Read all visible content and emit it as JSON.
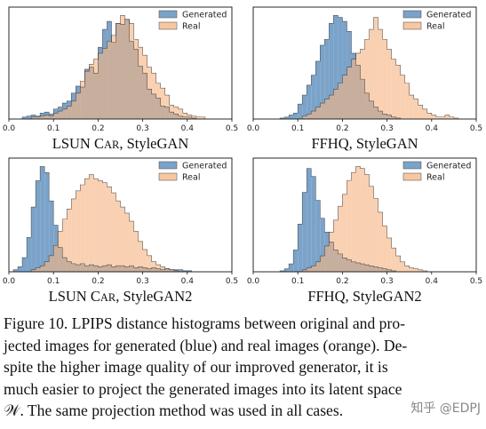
{
  "colors": {
    "generated": "#7ba3c9",
    "real": "#f6b483",
    "overlap": "#9d8d80",
    "edge": "#222222"
  },
  "chart_data": [
    {
      "type": "histogram",
      "title": "LSUN CAR, StyleGAN",
      "title_main": "LSUN C",
      "title_sc": "AR",
      "title_rest": ", StyleGAN",
      "legend": [
        "Generated",
        "Real"
      ],
      "xlim": [
        0,
        0.5
      ],
      "xticks": [
        "0.0",
        "0.1",
        "0.2",
        "0.3",
        "0.4",
        "0.5"
      ],
      "series": [
        {
          "name": "Generated",
          "x0": 0.03,
          "bin_width": 0.01,
          "values": [
            2,
            3,
            4,
            3,
            6,
            7,
            5,
            10,
            12,
            16,
            18,
            26,
            33,
            32,
            50,
            52,
            46,
            72,
            90,
            98,
            77,
            96,
            95,
            100,
            78,
            70,
            53,
            46,
            30,
            25,
            21,
            13,
            12,
            7,
            5,
            3,
            2,
            2,
            1
          ]
        },
        {
          "name": "Real",
          "x0": 0.05,
          "bin_width": 0.01,
          "values": [
            2,
            2,
            3,
            4,
            3,
            6,
            8,
            10,
            13,
            18,
            26,
            38,
            48,
            55,
            60,
            66,
            71,
            78,
            84,
            96,
            104,
            100,
            96,
            80,
            72,
            64,
            52,
            46,
            36,
            31,
            24,
            14,
            12,
            10,
            6,
            4,
            3,
            2,
            2
          ]
        }
      ]
    },
    {
      "type": "histogram",
      "title": "FFHQ, StyleGAN",
      "legend": [
        "Generated",
        "Real"
      ],
      "xlim": [
        0,
        0.5
      ],
      "xticks": [
        "0.0",
        "0.1",
        "0.2",
        "0.3",
        "0.4",
        "0.5"
      ],
      "series": [
        {
          "name": "Generated",
          "x0": 0.06,
          "bin_width": 0.01,
          "values": [
            1,
            2,
            4,
            6,
            15,
            24,
            34,
            44,
            58,
            74,
            80,
            96,
            104,
            102,
            98,
            88,
            66,
            54,
            40,
            26,
            18,
            12,
            8,
            5,
            4,
            2,
            1
          ]
        },
        {
          "name": "Real",
          "x0": 0.11,
          "bin_width": 0.01,
          "values": [
            3,
            5,
            8,
            12,
            16,
            20,
            24,
            30,
            36,
            44,
            52,
            60,
            66,
            70,
            80,
            90,
            102,
            90,
            80,
            70,
            60,
            54,
            44,
            36,
            24,
            20,
            14,
            10,
            6,
            4,
            2,
            2,
            4,
            2,
            1
          ]
        }
      ]
    },
    {
      "type": "histogram",
      "title": "LSUN CAR, StyleGAN2",
      "title_main": "LSUN C",
      "title_sc": "AR",
      "title_rest": ", StyleGAN2",
      "legend": [
        "Generated",
        "Real"
      ],
      "xlim": [
        0,
        0.5
      ],
      "xticks": [
        "0.0",
        "0.1",
        "0.2",
        "0.3",
        "0.4",
        "0.5"
      ],
      "series": [
        {
          "name": "Generated",
          "x0": 0.01,
          "bin_width": 0.01,
          "values": [
            2,
            5,
            14,
            34,
            64,
            90,
            104,
            98,
            70,
            46,
            24,
            14,
            10,
            8,
            7,
            8,
            6,
            7,
            6,
            5,
            6,
            7,
            5,
            6,
            6,
            5,
            6,
            4,
            5,
            4,
            3,
            4,
            3,
            2,
            3,
            2,
            2,
            2,
            1,
            1
          ]
        },
        {
          "name": "Real",
          "x0": 0.05,
          "bin_width": 0.01,
          "values": [
            2,
            4,
            6,
            10,
            16,
            26,
            40,
            52,
            62,
            72,
            80,
            86,
            92,
            96,
            92,
            90,
            88,
            84,
            78,
            70,
            64,
            58,
            50,
            40,
            30,
            22,
            16,
            10,
            7,
            5,
            3,
            2,
            1
          ]
        }
      ]
    },
    {
      "type": "histogram",
      "title": "FFHQ, StyleGAN2",
      "legend": [
        "Generated",
        "Real"
      ],
      "xlim": [
        0,
        0.5
      ],
      "xticks": [
        "0.0",
        "0.1",
        "0.2",
        "0.3",
        "0.4",
        "0.5"
      ],
      "series": [
        {
          "name": "Generated",
          "x0": 0.06,
          "bin_width": 0.01,
          "values": [
            1,
            3,
            8,
            22,
            48,
            80,
            104,
            96,
            72,
            54,
            40,
            30,
            22,
            18,
            14,
            12,
            10,
            9,
            8,
            7,
            6,
            5,
            4,
            3,
            2,
            1
          ]
        },
        {
          "name": "Real",
          "x0": 0.11,
          "bin_width": 0.01,
          "values": [
            2,
            4,
            6,
            10,
            16,
            26,
            40,
            52,
            66,
            78,
            92,
            100,
            106,
            104,
            98,
            86,
            74,
            60,
            46,
            34,
            24,
            16,
            10,
            6,
            4,
            3,
            2,
            1
          ]
        }
      ]
    }
  ],
  "caption": {
    "lines": [
      "Figure 10. LPIPS distance histograms between original and pro-",
      "jected images for generated (blue) and real images (orange). De-",
      "spite the higher image quality of our improved generator, it is",
      "much easier to project the generated images into its latent space",
      "𝒲. The same projection method was used in all cases."
    ]
  },
  "watermark": "知乎 @EDPJ"
}
